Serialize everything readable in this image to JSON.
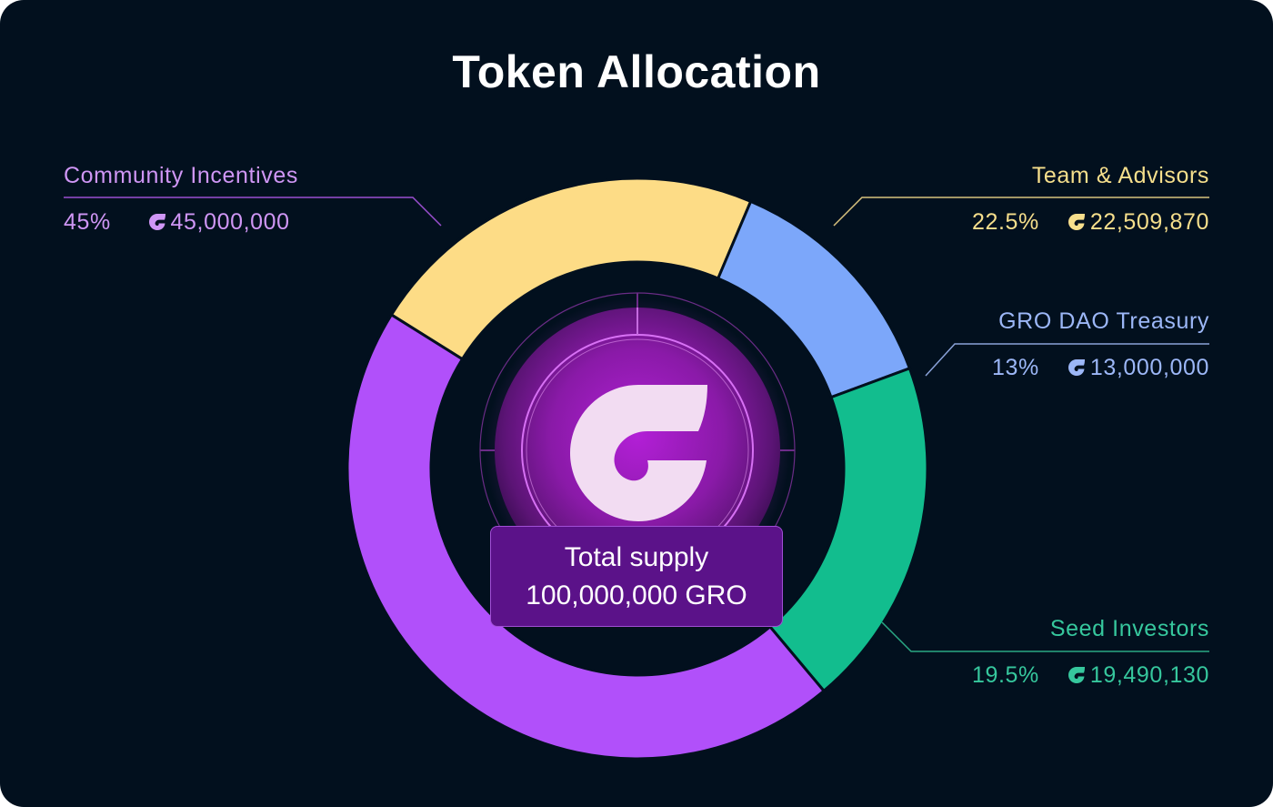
{
  "title": "Token Allocation",
  "center": {
    "line1": "Total supply",
    "line2": "100,000,000 GRO",
    "logo_icon": "gro-logo-icon"
  },
  "colors": {
    "background": "#02101e",
    "community": "#b150fa",
    "team": "#fddc86",
    "treasury": "#7ca7fa",
    "seed": "#12bd8e",
    "community_text": "#cf96f5",
    "team_text": "#f6df8c",
    "treasury_text": "#9cb7f7",
    "seed_text": "#36c79d"
  },
  "chart_data": {
    "type": "pie",
    "title": "Token Allocation",
    "total_label": "Total supply 100,000,000 GRO",
    "unit": "GRO",
    "slices": [
      {
        "key": "team",
        "name": "Team & Advisors",
        "percent_label": "22.5%",
        "percent": 22.5,
        "amount_label": "22,509,870",
        "amount": 22509870,
        "color": "#fddc86",
        "text_color": "#f6df8c"
      },
      {
        "key": "treasury",
        "name": "GRO DAO Treasury",
        "percent_label": "13%",
        "percent": 13,
        "amount_label": "13,000,000",
        "amount": 13000000,
        "color": "#7ca7fa",
        "text_color": "#9cb7f7"
      },
      {
        "key": "seed",
        "name": "Seed Investors",
        "percent_label": "19.5%",
        "percent": 19.5,
        "amount_label": "19,490,130",
        "amount": 19490130,
        "color": "#12bd8e",
        "text_color": "#36c79d"
      },
      {
        "key": "community",
        "name": "Community Incentives",
        "percent_label": "45%",
        "percent": 45,
        "amount_label": "45,000,000",
        "amount": 45000000,
        "color": "#b150fa",
        "text_color": "#cf96f5"
      }
    ],
    "legend": "callouts"
  }
}
